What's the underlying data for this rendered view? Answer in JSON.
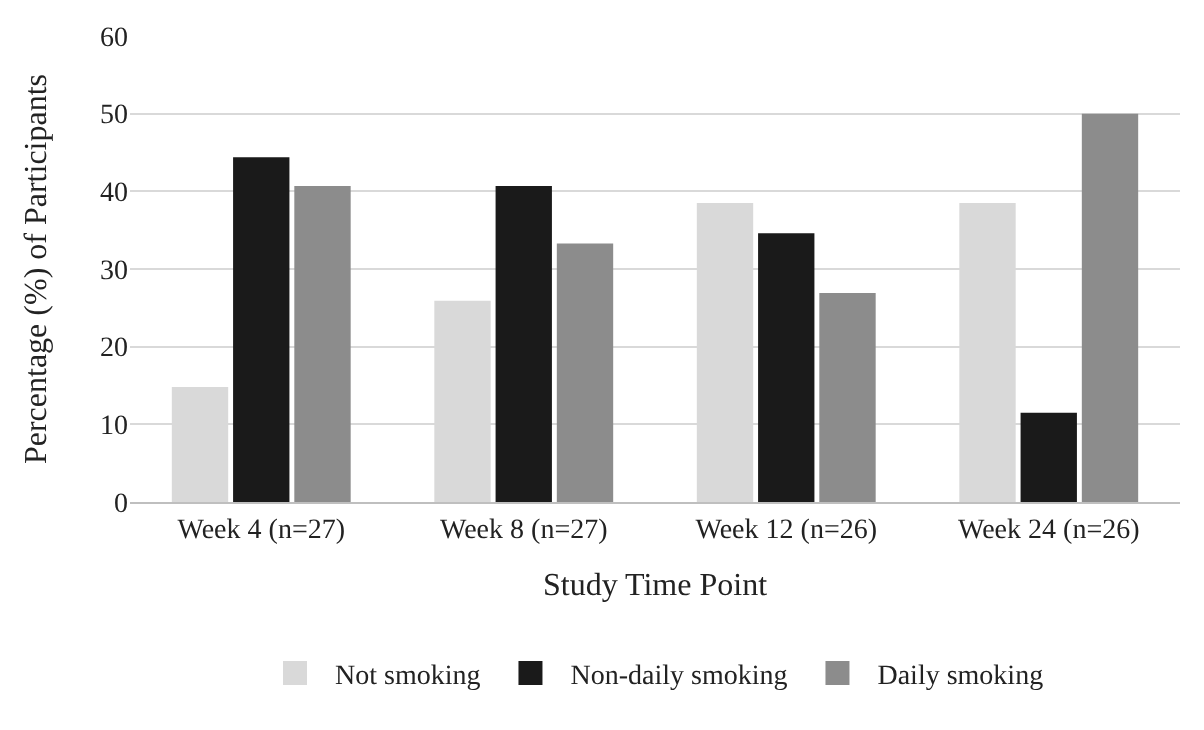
{
  "chart_data": {
    "type": "bar",
    "xlabel": "Study Time Point",
    "ylabel": "Percentage (%) of Participants",
    "categories": [
      "Week 4 (n=27)",
      "Week 8 (n=27)",
      "Week 12 (n=26)",
      "Week 24 (n=26)"
    ],
    "series": [
      {
        "name": "Not smoking",
        "color": "#d9d9d9",
        "values": [
          14.8,
          25.9,
          38.5,
          38.5
        ]
      },
      {
        "name": "Non-daily smoking",
        "color": "#1a1a1a",
        "values": [
          44.4,
          40.7,
          34.6,
          11.5
        ]
      },
      {
        "name": "Daily smoking",
        "color": "#8c8c8c",
        "values": [
          40.7,
          33.3,
          26.9,
          50.0
        ]
      }
    ],
    "ylim": [
      0,
      60
    ],
    "yticks": [
      0,
      10,
      20,
      30,
      40,
      50,
      60
    ],
    "grid": "y",
    "legend": "bottom"
  }
}
